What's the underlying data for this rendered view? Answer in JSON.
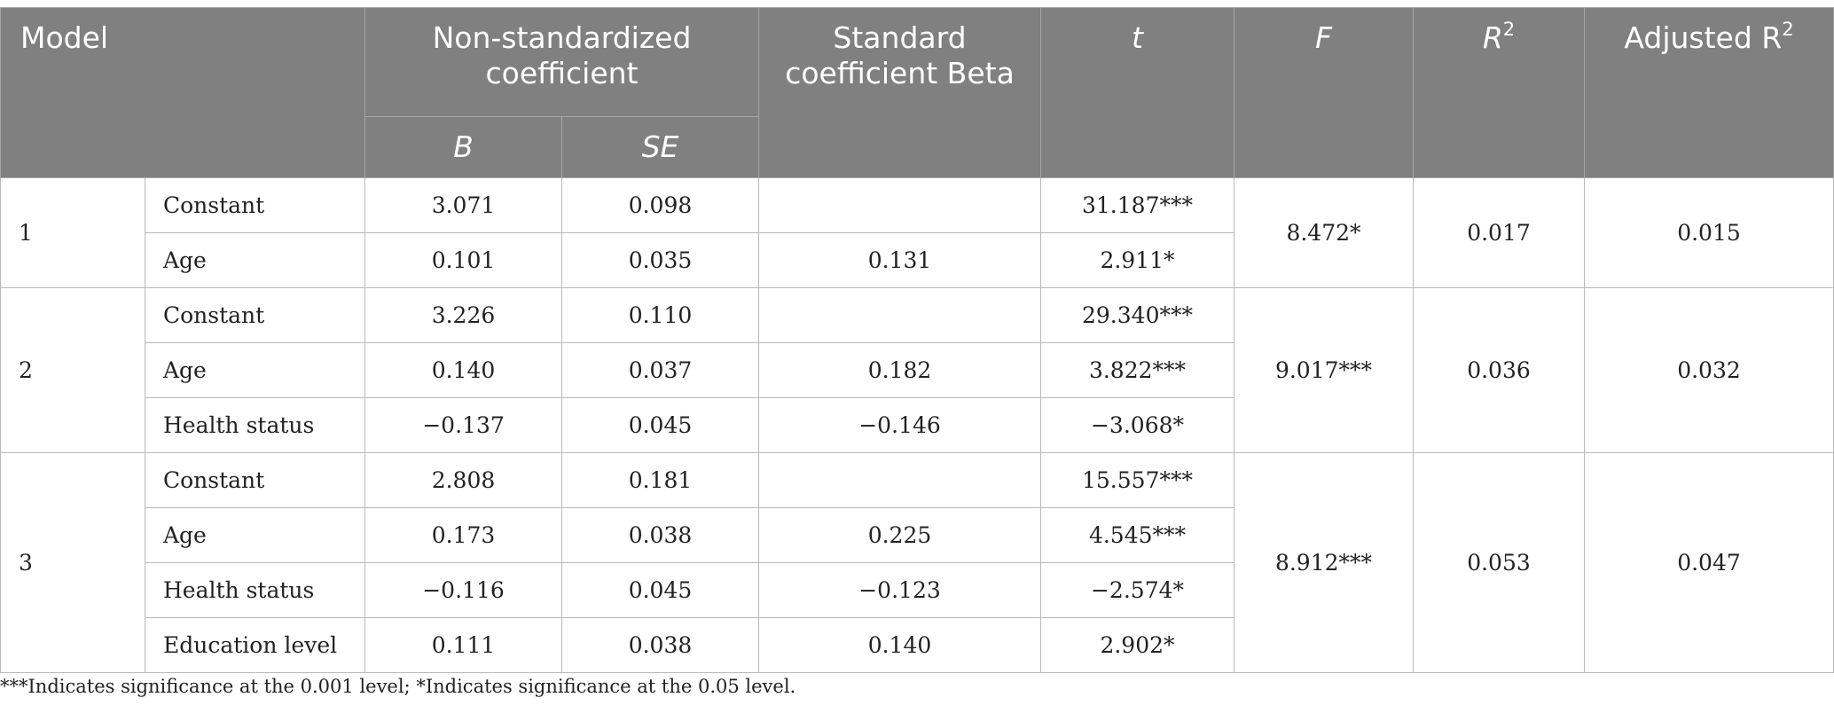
{
  "header": {
    "model": "Model",
    "non_std": "Non-standardized coefficient",
    "std_beta": "Standard coefficient Beta",
    "t": "t",
    "f": "F",
    "r2_base": "R",
    "r2_sup": "2",
    "adj_r2_base": "Adjusted R",
    "adj_r2_sup": "2",
    "b": "B",
    "se": "SE"
  },
  "models": [
    {
      "label": "1",
      "F": "8.472*",
      "R2": "0.017",
      "adjR2": "0.015",
      "rows": [
        {
          "var": "Constant",
          "B": "3.071",
          "SE": "0.098",
          "beta": "",
          "t": "31.187***"
        },
        {
          "var": "Age",
          "B": "0.101",
          "SE": "0.035",
          "beta": "0.131",
          "t": "2.911*"
        }
      ]
    },
    {
      "label": "2",
      "F": "9.017***",
      "R2": "0.036",
      "adjR2": "0.032",
      "rows": [
        {
          "var": "Constant",
          "B": "3.226",
          "SE": "0.110",
          "beta": "",
          "t": "29.340***"
        },
        {
          "var": "Age",
          "B": "0.140",
          "SE": "0.037",
          "beta": "0.182",
          "t": "3.822***"
        },
        {
          "var": "Health status",
          "B": "−0.137",
          "SE": "0.045",
          "beta": "−0.146",
          "t": "−3.068*"
        }
      ]
    },
    {
      "label": "3",
      "F": "8.912***",
      "R2": "0.053",
      "adjR2": "0.047",
      "rows": [
        {
          "var": "Constant",
          "B": "2.808",
          "SE": "0.181",
          "beta": "",
          "t": "15.557***"
        },
        {
          "var": "Age",
          "B": "0.173",
          "SE": "0.038",
          "beta": "0.225",
          "t": "4.545***"
        },
        {
          "var": "Health status",
          "B": "−0.116",
          "SE": "0.045",
          "beta": "−0.123",
          "t": "−2.574*"
        },
        {
          "var": "Education level",
          "B": "0.111",
          "SE": "0.038",
          "beta": "0.140",
          "t": "2.902*"
        }
      ]
    }
  ],
  "footnote": "***Indicates significance at the 0.001 level; *Indicates significance at the 0.05 level."
}
